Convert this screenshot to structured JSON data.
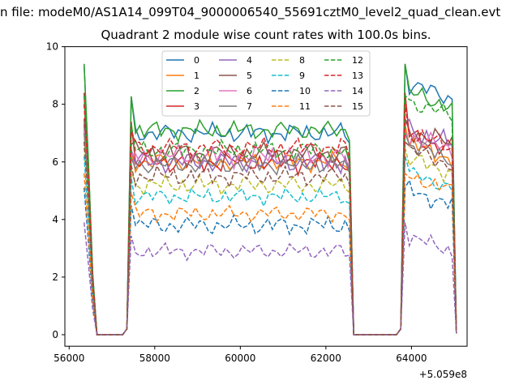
{
  "header": {
    "suptitle": "n file: modeM0/AS1A14_099T04_9000006540_55691cztM0_level2_quad_clean.evt",
    "title": "Quadrant 2 module wise count rates with 100.0s bins."
  },
  "chart_data": {
    "type": "line",
    "title": "Quadrant 2 module wise count rates with 100.0s bins.",
    "xlabel": "",
    "ylabel": "",
    "offset_label": "+5.059e8",
    "xlim": [
      55900,
      65300
    ],
    "ylim": [
      -0.4,
      10
    ],
    "x_ticks": [
      56000,
      58000,
      60000,
      62000,
      64000
    ],
    "x_tick_labels": [
      "56000",
      "58000",
      "60000",
      "62000",
      "64000"
    ],
    "y_ticks": [
      0,
      2,
      4,
      6,
      8,
      10
    ],
    "y_tick_labels": [
      "0",
      "2",
      "4",
      "6",
      "8",
      "10"
    ],
    "legend_position": "upper-center",
    "segments": [
      {
        "start": 56350,
        "step": 100,
        "n": 3
      },
      {
        "start": 57350,
        "step": 100,
        "n": 53
      },
      {
        "start": 63750,
        "step": 100,
        "n": 14
      }
    ],
    "series": [
      {
        "name": "0",
        "color": "#1f77b4",
        "dash": "solid",
        "level": 7.0,
        "spike": 9.4,
        "end": 8.1,
        "amp": 0.35
      },
      {
        "name": "1",
        "color": "#ff7f0e",
        "dash": "solid",
        "level": 6.0,
        "spike": 7.3,
        "end": 6.0,
        "amp": 0.35
      },
      {
        "name": "2",
        "color": "#2ca02c",
        "dash": "solid",
        "level": 7.1,
        "spike": 9.4,
        "end": 7.8,
        "amp": 0.35
      },
      {
        "name": "3",
        "color": "#d62728",
        "dash": "solid",
        "level": 6.0,
        "spike": 8.4,
        "end": 6.3,
        "amp": 0.4
      },
      {
        "name": "4",
        "color": "#9467bd",
        "dash": "solid",
        "level": 6.0,
        "spike": 7.3,
        "end": 6.5,
        "amp": 0.4
      },
      {
        "name": "5",
        "color": "#8c564b",
        "dash": "solid",
        "level": 6.3,
        "spike": 7.5,
        "end": 6.5,
        "amp": 0.4
      },
      {
        "name": "6",
        "color": "#e377c2",
        "dash": "solid",
        "level": 6.2,
        "spike": 7.1,
        "end": 6.3,
        "amp": 0.4
      },
      {
        "name": "7",
        "color": "#7f7f7f",
        "dash": "solid",
        "level": 5.9,
        "spike": 7.0,
        "end": 6.0,
        "amp": 0.35
      },
      {
        "name": "8",
        "color": "#bcbd22",
        "dash": "dashed",
        "level": 5.2,
        "spike": 6.5,
        "end": 5.5,
        "amp": 0.35
      },
      {
        "name": "9",
        "color": "#17becf",
        "dash": "dashed",
        "level": 4.8,
        "spike": 6.2,
        "end": 5.0,
        "amp": 0.3
      },
      {
        "name": "10",
        "color": "#1f77b4",
        "dash": "dashed",
        "level": 3.8,
        "spike": 5.1,
        "end": 4.4,
        "amp": 0.35
      },
      {
        "name": "11",
        "color": "#ff7f0e",
        "dash": "dashed",
        "level": 4.2,
        "spike": 5.6,
        "end": 4.9,
        "amp": 0.3
      },
      {
        "name": "12",
        "color": "#2ca02c",
        "dash": "dashed",
        "level": 6.4,
        "spike": 8.3,
        "end": 7.5,
        "amp": 0.35
      },
      {
        "name": "13",
        "color": "#d62728",
        "dash": "dashed",
        "level": 6.5,
        "spike": 8.0,
        "end": 6.4,
        "amp": 0.35
      },
      {
        "name": "14",
        "color": "#9467bd",
        "dash": "dashed",
        "level": 2.9,
        "spike": 3.9,
        "end": 2.8,
        "amp": 0.3
      },
      {
        "name": "15",
        "color": "#8c564b",
        "dash": "dashed",
        "level": 5.5,
        "spike": 6.7,
        "end": 5.8,
        "amp": 0.35
      }
    ]
  }
}
